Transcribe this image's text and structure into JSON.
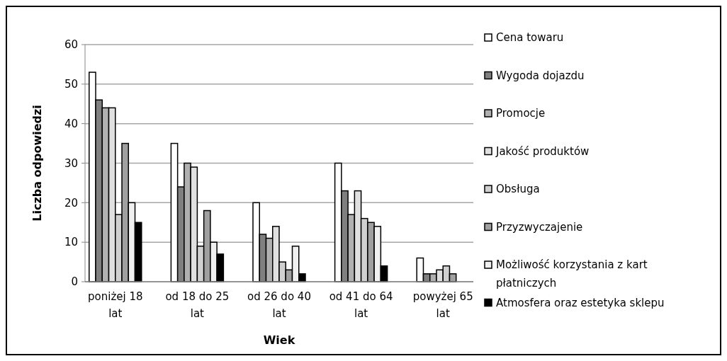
{
  "chart_data": {
    "type": "bar",
    "xlabel": "Wiek",
    "ylabel": "Liczba odpowiedzi",
    "categories": [
      "poniżej 18 lat",
      "od 18 do 25 lat",
      "od 26 do 40 lat",
      "od 41 do 64 lat",
      "powyżej 65 lat"
    ],
    "series": [
      {
        "name": "Cena towaru",
        "color": "#ffffff",
        "values": [
          53,
          35,
          20,
          30,
          6
        ]
      },
      {
        "name": "Wygoda dojazdu",
        "color": "#808080",
        "values": [
          46,
          24,
          12,
          23,
          2
        ]
      },
      {
        "name": "Promocje",
        "color": "#b0b0b0",
        "values": [
          44,
          30,
          11,
          17,
          2
        ]
      },
      {
        "name": "Jakość produktów",
        "color": "#e0e0e0",
        "values": [
          44,
          29,
          14,
          23,
          3
        ]
      },
      {
        "name": "Obsługa",
        "color": "#d0d0d0",
        "values": [
          17,
          9,
          5,
          16,
          4
        ]
      },
      {
        "name": "Przyzwyczajenie",
        "color": "#a0a0a0",
        "values": [
          35,
          18,
          3,
          15,
          2
        ]
      },
      {
        "name": "Możliwość korzystania z kart płatniczych",
        "color": "#f0f0f0",
        "values": [
          20,
          10,
          9,
          14,
          0
        ]
      },
      {
        "name": "Atmosfera oraz estetyka sklepu",
        "color": "#000000",
        "values": [
          15,
          7,
          2,
          4,
          0
        ]
      }
    ],
    "ylim": [
      0,
      60
    ],
    "yticks": [
      0,
      10,
      20,
      30,
      40,
      50,
      60
    ],
    "grid": "y",
    "legend": "right"
  }
}
